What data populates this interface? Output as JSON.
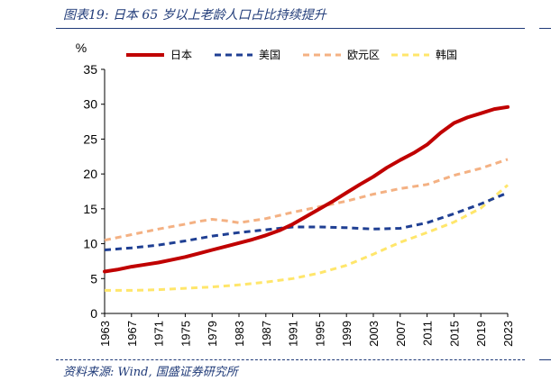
{
  "figure": {
    "title": "图表19:  日本 65 岁以上老龄人口占比持续提升",
    "source": "资料来源:  Wind, 国盛证券研究所"
  },
  "chart_data": {
    "type": "line",
    "ylabel": "%",
    "ylim": [
      0,
      35
    ],
    "yticks": [
      0,
      5,
      10,
      15,
      20,
      25,
      30,
      35
    ],
    "xlim": [
      1963,
      2023
    ],
    "xticks": [
      1963,
      1967,
      1971,
      1975,
      1979,
      1983,
      1987,
      1991,
      1995,
      1999,
      2003,
      2007,
      2011,
      2015,
      2019,
      2023
    ],
    "legend_position": "top",
    "grid": false,
    "series": [
      {
        "name": "日本",
        "color": "#c00000",
        "style": "solid",
        "x": [
          1963,
          1965,
          1967,
          1969,
          1971,
          1973,
          1975,
          1977,
          1979,
          1981,
          1983,
          1985,
          1987,
          1989,
          1991,
          1993,
          1995,
          1997,
          1999,
          2001,
          2003,
          2005,
          2007,
          2009,
          2011,
          2013,
          2015,
          2017,
          2019,
          2021,
          2023
        ],
        "values": [
          6.0,
          6.3,
          6.7,
          7.0,
          7.3,
          7.7,
          8.1,
          8.6,
          9.1,
          9.6,
          10.1,
          10.6,
          11.2,
          11.9,
          12.8,
          13.9,
          15.0,
          16.1,
          17.3,
          18.5,
          19.6,
          20.9,
          22.0,
          23.0,
          24.2,
          25.9,
          27.3,
          28.1,
          28.7,
          29.3,
          29.6
        ]
      },
      {
        "name": "美国",
        "color": "#1f3f93",
        "style": "dashed",
        "x": [
          1963,
          1967,
          1971,
          1975,
          1979,
          1983,
          1987,
          1991,
          1993,
          1995,
          1999,
          2003,
          2007,
          2009,
          2011,
          2015,
          2019,
          2023
        ],
        "values": [
          9.1,
          9.4,
          9.8,
          10.4,
          11.1,
          11.6,
          12.0,
          12.4,
          12.4,
          12.4,
          12.3,
          12.1,
          12.2,
          12.6,
          13.0,
          14.3,
          15.7,
          17.3
        ]
      },
      {
        "name": "欧元区",
        "color": "#f4b183",
        "style": "dashed",
        "x": [
          1963,
          1967,
          1971,
          1975,
          1977,
          1979,
          1981,
          1983,
          1985,
          1987,
          1991,
          1995,
          1999,
          2003,
          2007,
          2011,
          2015,
          2019,
          2023
        ],
        "values": [
          10.5,
          11.3,
          12.1,
          12.8,
          13.2,
          13.5,
          13.3,
          13.0,
          13.3,
          13.6,
          14.5,
          15.3,
          16.1,
          17.1,
          17.9,
          18.5,
          19.8,
          20.8,
          22.1
        ]
      },
      {
        "name": "韩国",
        "color": "#ffe66b",
        "style": "dashed",
        "x": [
          1963,
          1967,
          1971,
          1975,
          1979,
          1983,
          1987,
          1991,
          1995,
          1999,
          2003,
          2007,
          2011,
          2015,
          2019,
          2023
        ],
        "values": [
          3.3,
          3.3,
          3.4,
          3.6,
          3.8,
          4.1,
          4.5,
          5.0,
          5.8,
          6.9,
          8.5,
          10.2,
          11.6,
          13.1,
          15.1,
          18.4
        ]
      }
    ]
  }
}
